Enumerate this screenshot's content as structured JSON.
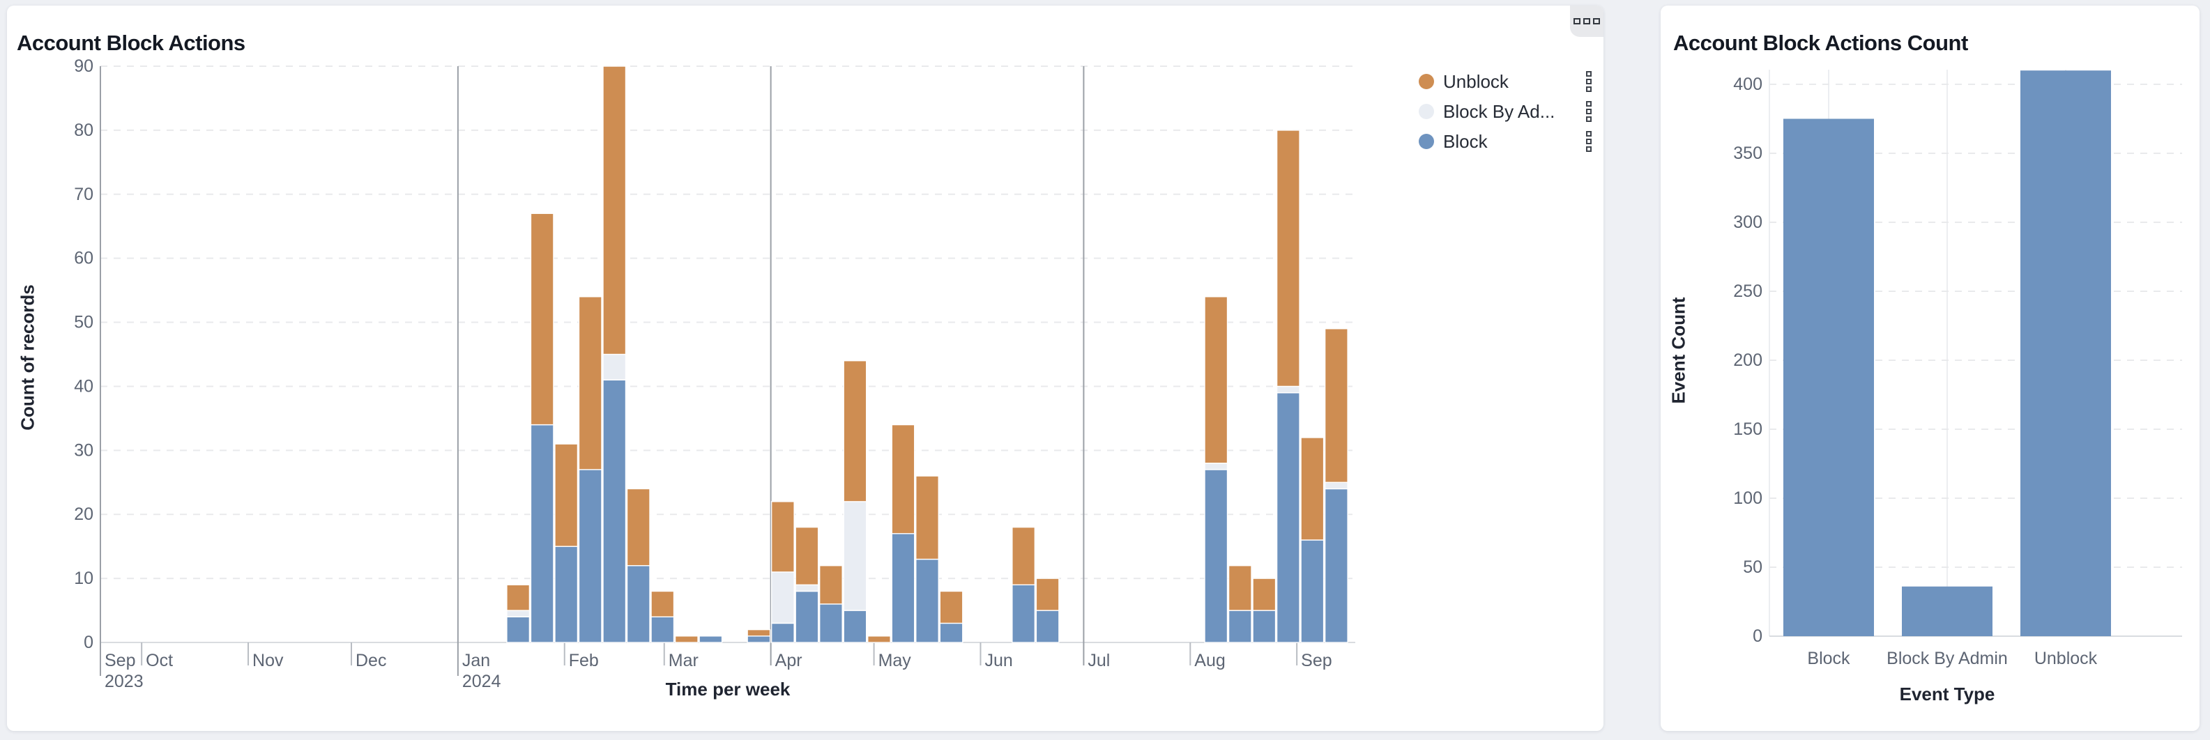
{
  "left_card": {
    "title": "Account Block Actions",
    "legend": [
      {
        "key": "unblock",
        "label": "Unblock",
        "color": "#ce8d52"
      },
      {
        "key": "block_by_admin",
        "label": "Block By Ad...",
        "color": "#e9edf3"
      },
      {
        "key": "block",
        "label": "Block",
        "color": "#6e93bf"
      }
    ],
    "chart_data": {
      "type": "bar",
      "subtype": "stacked-weekly-time-series",
      "title": "Account Block Actions",
      "xlabel": "Time per week",
      "ylabel": "Count of records",
      "ylim": [
        0,
        90
      ],
      "yticks": [
        0,
        10,
        20,
        30,
        40,
        50,
        60,
        70,
        80,
        90
      ],
      "grid": "dashed-horizontal",
      "legend_position": "top-right",
      "x_domain": [
        "2023-09-19",
        "2024-09-18"
      ],
      "quarter_lines": [
        "2023-09-19",
        "2024-01-01",
        "2024-04-01",
        "2024-07-01"
      ],
      "month_ticks": [
        {
          "date": "2023-09-19",
          "label": "Sep",
          "sub": "2023"
        },
        {
          "date": "2023-10-01",
          "label": "Oct"
        },
        {
          "date": "2023-11-01",
          "label": "Nov"
        },
        {
          "date": "2023-12-01",
          "label": "Dec"
        },
        {
          "date": "2024-01-01",
          "label": "Jan",
          "sub": "2024"
        },
        {
          "date": "2024-02-01",
          "label": "Feb"
        },
        {
          "date": "2024-03-01",
          "label": "Mar"
        },
        {
          "date": "2024-04-01",
          "label": "Apr"
        },
        {
          "date": "2024-05-01",
          "label": "May"
        },
        {
          "date": "2024-06-01",
          "label": "Jun"
        },
        {
          "date": "2024-07-01",
          "label": "Jul"
        },
        {
          "date": "2024-08-01",
          "label": "Aug"
        },
        {
          "date": "2024-09-01",
          "label": "Sep"
        }
      ],
      "series_order": [
        "block",
        "block_by_admin",
        "unblock"
      ],
      "series_colors": {
        "block": "#6e93bf",
        "block_by_admin": "#e9edf3",
        "unblock": "#ce8d52"
      },
      "series_names": {
        "block": "Block",
        "block_by_admin": "Block By Admin",
        "unblock": "Unblock"
      },
      "bars": [
        {
          "week": "2024-01-15",
          "block": 4,
          "block_by_admin": 1,
          "unblock": 4
        },
        {
          "week": "2024-01-22",
          "block": 34,
          "block_by_admin": 0,
          "unblock": 33
        },
        {
          "week": "2024-01-29",
          "block": 15,
          "block_by_admin": 0,
          "unblock": 16
        },
        {
          "week": "2024-02-05",
          "block": 27,
          "block_by_admin": 0,
          "unblock": 27
        },
        {
          "week": "2024-02-12",
          "block": 41,
          "block_by_admin": 4,
          "unblock": 45
        },
        {
          "week": "2024-02-19",
          "block": 12,
          "block_by_admin": 0,
          "unblock": 12
        },
        {
          "week": "2024-02-26",
          "block": 4,
          "block_by_admin": 0,
          "unblock": 4
        },
        {
          "week": "2024-03-04",
          "block": 0,
          "block_by_admin": 0,
          "unblock": 1
        },
        {
          "week": "2024-03-11",
          "block": 1,
          "block_by_admin": 0,
          "unblock": 0
        },
        {
          "week": "2024-03-25",
          "block": 1,
          "block_by_admin": 0,
          "unblock": 1
        },
        {
          "week": "2024-04-01",
          "block": 3,
          "block_by_admin": 8,
          "unblock": 11
        },
        {
          "week": "2024-04-08",
          "block": 8,
          "block_by_admin": 1,
          "unblock": 9
        },
        {
          "week": "2024-04-15",
          "block": 6,
          "block_by_admin": 0,
          "unblock": 6
        },
        {
          "week": "2024-04-22",
          "block": 5,
          "block_by_admin": 17,
          "unblock": 22
        },
        {
          "week": "2024-04-29",
          "block": 0,
          "block_by_admin": 0,
          "unblock": 1
        },
        {
          "week": "2024-05-06",
          "block": 17,
          "block_by_admin": 0,
          "unblock": 17
        },
        {
          "week": "2024-05-13",
          "block": 13,
          "block_by_admin": 0,
          "unblock": 13
        },
        {
          "week": "2024-05-20",
          "block": 3,
          "block_by_admin": 0,
          "unblock": 5
        },
        {
          "week": "2024-06-10",
          "block": 9,
          "block_by_admin": 0,
          "unblock": 9
        },
        {
          "week": "2024-06-17",
          "block": 5,
          "block_by_admin": 0,
          "unblock": 5
        },
        {
          "week": "2024-08-05",
          "block": 27,
          "block_by_admin": 1,
          "unblock": 26
        },
        {
          "week": "2024-08-12",
          "block": 5,
          "block_by_admin": 0,
          "unblock": 7
        },
        {
          "week": "2024-08-19",
          "block": 5,
          "block_by_admin": 0,
          "unblock": 5
        },
        {
          "week": "2024-08-26",
          "block": 39,
          "block_by_admin": 1,
          "unblock": 40
        },
        {
          "week": "2024-09-02",
          "block": 16,
          "block_by_admin": 0,
          "unblock": 16
        },
        {
          "week": "2024-09-09",
          "block": 24,
          "block_by_admin": 1,
          "unblock": 24
        }
      ]
    }
  },
  "right_card": {
    "title": "Account Block Actions Count",
    "chart_data": {
      "type": "bar",
      "title": "Account Block Actions Count",
      "categories": [
        "Block",
        "Block By Admin",
        "Unblock"
      ],
      "values": [
        375,
        36,
        410
      ],
      "bar_color": "#6e93bf",
      "xlabel": "Event Type",
      "ylabel": "Event Count",
      "ylim": [
        0,
        400
      ],
      "yticks": [
        0,
        50,
        100,
        150,
        200,
        250,
        300,
        350,
        400
      ],
      "grid": "dashed-horizontal"
    }
  }
}
